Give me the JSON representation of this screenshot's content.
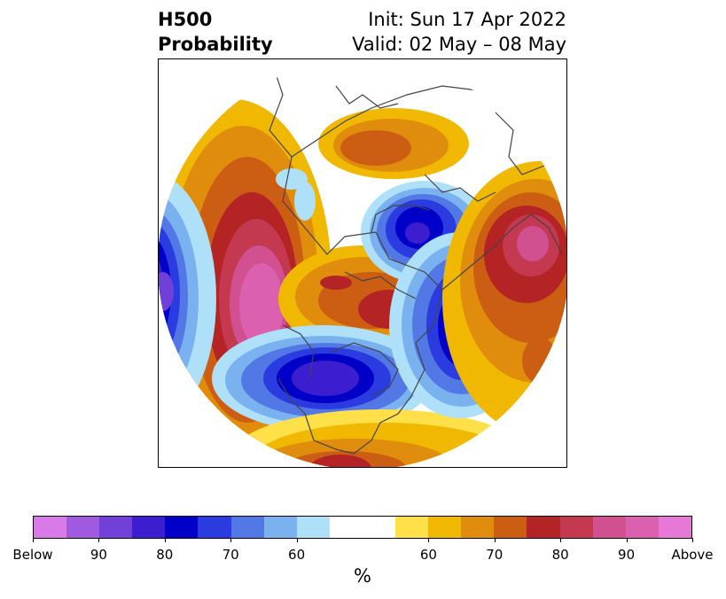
{
  "header": {
    "left_line1": "H500",
    "left_line2": "Probability",
    "right_line1": "Init: Sun 17 Apr 2022",
    "right_line2": "Valid: 02 May – 08 May"
  },
  "colorbar": {
    "below_colors": [
      "#d97ae8",
      "#a05ae0",
      "#7040d8",
      "#3c1ed0",
      "#0000c8",
      "#2a3ce0",
      "#5278e6",
      "#7ab2f0",
      "#aee0fa"
    ],
    "above_colors": [
      "#ffe048",
      "#f0b800",
      "#e08c0c",
      "#cc5e14",
      "#b42424",
      "#c43850",
      "#d05090",
      "#dc60b0",
      "#e878d8"
    ],
    "below_ticks": [
      "Below",
      "90",
      "80",
      "70",
      "60"
    ],
    "above_ticks": [
      "60",
      "70",
      "80",
      "90",
      "Above"
    ],
    "unit": "%"
  }
}
